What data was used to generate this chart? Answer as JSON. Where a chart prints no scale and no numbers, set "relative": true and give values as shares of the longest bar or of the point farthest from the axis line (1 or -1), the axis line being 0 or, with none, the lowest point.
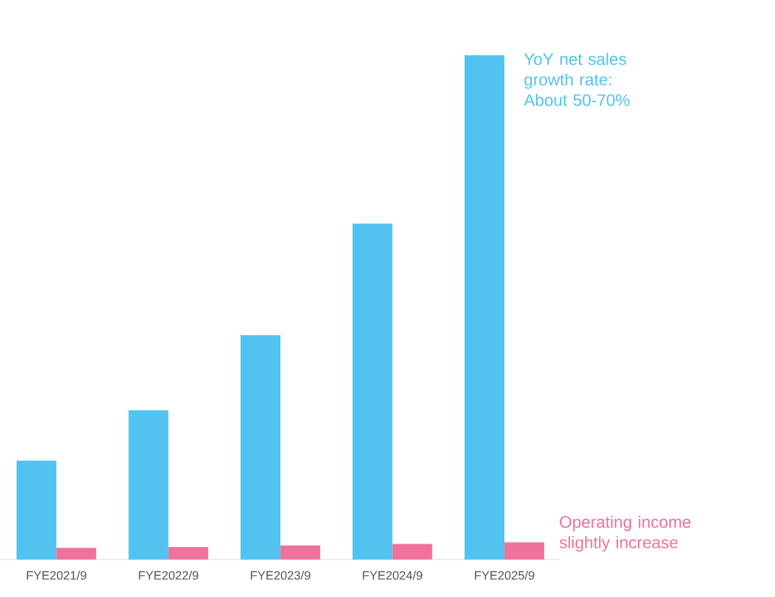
{
  "chart_data": {
    "type": "bar",
    "relative": true,
    "categories": [
      "FYE2021/9",
      "FYE2022/9",
      "FYE2023/9",
      "FYE2024/9",
      "FYE2025/9"
    ],
    "series": [
      {
        "name": "YoY net sales growth rate: About 50-70%",
        "color": "#52c3f0",
        "values": [
          0.196,
          0.296,
          0.445,
          0.666,
          1
        ]
      },
      {
        "name": "Operating income slightly increase",
        "color": "#ef729d",
        "values": [
          0.023,
          0.025,
          0.028,
          0.031,
          0.034
        ]
      }
    ]
  }
}
